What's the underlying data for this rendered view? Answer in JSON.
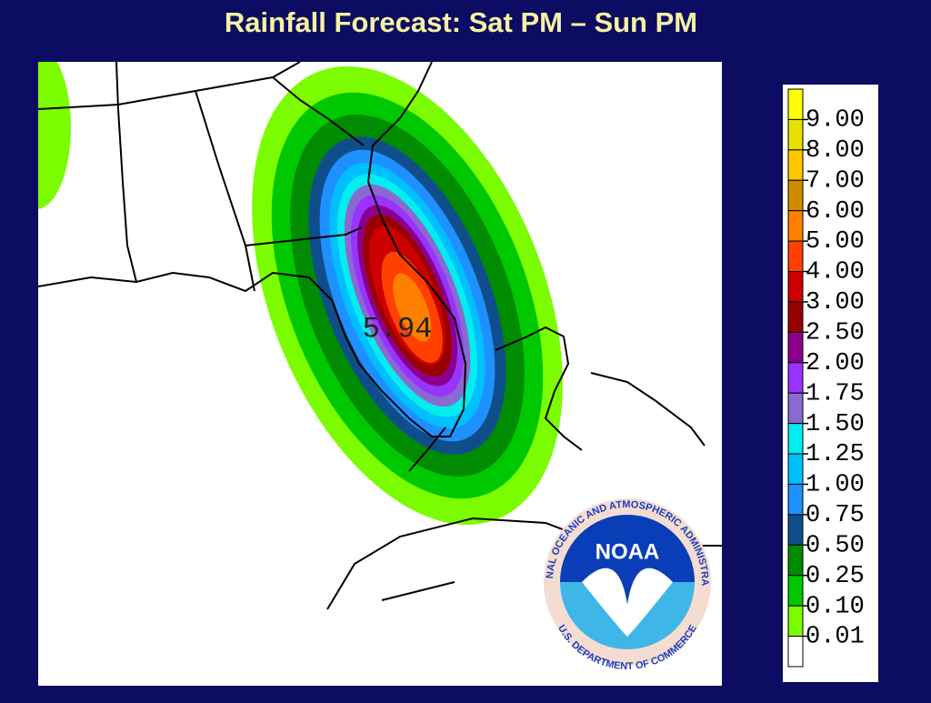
{
  "header": {
    "title": "Rainfall Forecast: Sat PM – Sun PM"
  },
  "map": {
    "max_label": "5.94"
  },
  "logo": {
    "name": "NOAA",
    "ring_top": "NATIONAL OCEANIC AND ATMOSPHERIC ADMINISTRATION",
    "ring_bottom": "U.S. DEPARTMENT OF COMMERCE"
  },
  "legend": {
    "colors": [
      "#ffff00",
      "#e8e000",
      "#ffc800",
      "#d08c00",
      "#ff8000",
      "#ff4000",
      "#cc0000",
      "#990000",
      "#8b008b",
      "#9933ff",
      "#8a6ad0",
      "#00eeee",
      "#00bfff",
      "#1e90ff",
      "#104e8b",
      "#008b00",
      "#00c800",
      "#7cfc00",
      "#ffffff"
    ],
    "labels": [
      "9.00",
      "8.00",
      "7.00",
      "6.00",
      "5.00",
      "4.00",
      "3.00",
      "2.50",
      "2.00",
      "1.75",
      "1.50",
      "1.25",
      "1.00",
      "0.75",
      "0.50",
      "0.25",
      "0.10",
      "0.01"
    ]
  }
}
